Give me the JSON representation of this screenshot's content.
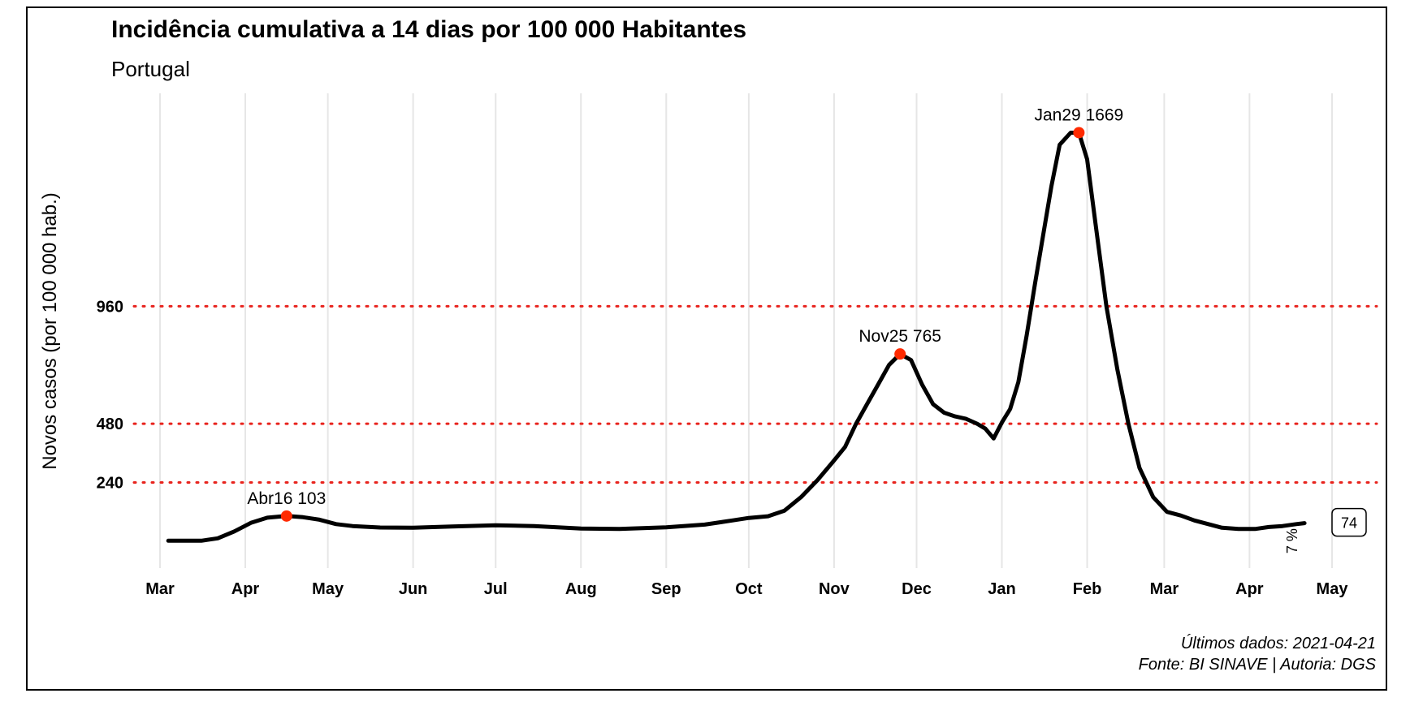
{
  "chart_data": {
    "type": "line",
    "title": "Incidência cumulativa a 14 dias por 100 000 Habitantes",
    "subtitle": "Portugal",
    "ylabel": "Novos casos (por 100 000 hab.)",
    "xlabel": "",
    "x_ticks": [
      "Mar",
      "Apr",
      "May",
      "Jun",
      "Jul",
      "Aug",
      "Sep",
      "Oct",
      "Nov",
      "Dec",
      "Jan",
      "Feb",
      "Mar",
      "Apr",
      "May"
    ],
    "x_tick_dates": [
      "2020-03-01",
      "2020-04-01",
      "2020-05-01",
      "2020-06-01",
      "2020-07-01",
      "2020-08-01",
      "2020-09-01",
      "2020-10-01",
      "2020-11-01",
      "2020-12-01",
      "2021-01-01",
      "2021-02-01",
      "2021-03-01",
      "2021-04-01",
      "2021-05-01"
    ],
    "xlim": [
      "2020-03-01",
      "2021-05-01"
    ],
    "y_ticks": [
      240,
      480,
      960
    ],
    "ylim": [
      -60,
      1780
    ],
    "reference_lines": [
      240,
      480,
      960
    ],
    "reference_line_color": "#e8231d",
    "line_color": "#000000",
    "series": [
      {
        "x": [
          "2020-03-04",
          "2020-03-10",
          "2020-03-16",
          "2020-03-22",
          "2020-03-28",
          "2020-04-03",
          "2020-04-09",
          "2020-04-16",
          "2020-04-22",
          "2020-04-28",
          "2020-05-04",
          "2020-05-10",
          "2020-05-20",
          "2020-06-01",
          "2020-06-15",
          "2020-07-01",
          "2020-07-15",
          "2020-08-01",
          "2020-08-15",
          "2020-09-01",
          "2020-09-15",
          "2020-09-25",
          "2020-10-01",
          "2020-10-08",
          "2020-10-14",
          "2020-10-20",
          "2020-10-26",
          "2020-11-01",
          "2020-11-05",
          "2020-11-09",
          "2020-11-13",
          "2020-11-17",
          "2020-11-21",
          "2020-11-25",
          "2020-11-29",
          "2020-12-03",
          "2020-12-07",
          "2020-12-11",
          "2020-12-15",
          "2020-12-19",
          "2020-12-23",
          "2020-12-26",
          "2020-12-29",
          "2021-01-01",
          "2021-01-04",
          "2021-01-07",
          "2021-01-10",
          "2021-01-13",
          "2021-01-16",
          "2021-01-19",
          "2021-01-22",
          "2021-01-26",
          "2021-01-29",
          "2021-02-01",
          "2021-02-04",
          "2021-02-08",
          "2021-02-12",
          "2021-02-16",
          "2021-02-20",
          "2021-02-25",
          "2021-03-02",
          "2021-03-07",
          "2021-03-12",
          "2021-03-17",
          "2021-03-22",
          "2021-03-28",
          "2021-04-03",
          "2021-04-08",
          "2021-04-13",
          "2021-04-18",
          "2021-04-21"
        ],
        "y": [
          2,
          2,
          2,
          12,
          40,
          75,
          96,
          103,
          98,
          88,
          70,
          62,
          56,
          55,
          60,
          65,
          62,
          52,
          50,
          57,
          68,
          85,
          95,
          102,
          125,
          180,
          250,
          330,
          385,
          480,
          560,
          640,
          720,
          765,
          740,
          640,
          560,
          525,
          510,
          500,
          480,
          460,
          420,
          485,
          540,
          650,
          840,
          1050,
          1250,
          1450,
          1620,
          1669,
          1669,
          1560,
          1300,
          960,
          700,
          480,
          300,
          180,
          120,
          105,
          85,
          70,
          55,
          50,
          50,
          58,
          62,
          70,
          74
        ]
      }
    ],
    "annotations": [
      {
        "date": "2020-04-16",
        "value": 103,
        "label": "Abr16 103"
      },
      {
        "date": "2020-11-25",
        "value": 765,
        "label": "Nov25 765"
      },
      {
        "date": "2021-01-29",
        "value": 1669,
        "label": "Jan29 1669"
      }
    ],
    "annotation_color": "#ff2a00",
    "end_value_label": "74",
    "end_value_sublabel": "7 %",
    "grid": "vertical only",
    "caption_line1": "Últimos dados: 2021-04-21",
    "caption_line2": "Fonte: BI SINAVE | Autoria: DGS"
  }
}
